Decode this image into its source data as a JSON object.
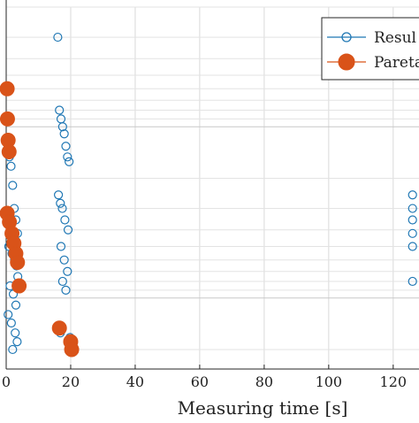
{
  "chart_data": {
    "type": "scatter",
    "title": "",
    "xlabel": "Measuring time [s]",
    "ylabel": "",
    "xlim": [
      0,
      128
    ],
    "xticks": [
      0,
      20,
      40,
      60,
      80,
      100,
      120
    ],
    "xtick_labels": [
      "0",
      "20",
      "40",
      "60",
      "80",
      "100",
      "120"
    ],
    "y_scale": "log",
    "grid": true,
    "legend_position": "top-right",
    "series": [
      {
        "name": "Resul",
        "style": "open-circle",
        "color": "#1f77b4",
        "points": [
          {
            "x": 0.5,
            "y": 0.12
          },
          {
            "x": 1.0,
            "y": 0.15
          },
          {
            "x": 1.5,
            "y": 0.17
          },
          {
            "x": 2.0,
            "y": 0.22
          },
          {
            "x": 2.5,
            "y": 0.3
          },
          {
            "x": 3.0,
            "y": 0.35
          },
          {
            "x": 3.5,
            "y": 0.42
          },
          {
            "x": 0.8,
            "y": 0.5
          },
          {
            "x": 1.8,
            "y": 0.55
          },
          {
            "x": 2.6,
            "y": 0.6
          },
          {
            "x": 3.2,
            "y": 0.65
          },
          {
            "x": 3.6,
            "y": 0.75
          },
          {
            "x": 1.2,
            "y": 0.85
          },
          {
            "x": 2.2,
            "y": 0.95
          },
          {
            "x": 3.0,
            "y": 1.1
          },
          {
            "x": 0.6,
            "y": 1.25
          },
          {
            "x": 1.6,
            "y": 1.4
          },
          {
            "x": 2.8,
            "y": 1.6
          },
          {
            "x": 3.4,
            "y": 1.8
          },
          {
            "x": 2.0,
            "y": 2.0
          },
          {
            "x": 16.0,
            "y": 0.03
          },
          {
            "x": 16.5,
            "y": 0.08
          },
          {
            "x": 17.0,
            "y": 0.09
          },
          {
            "x": 17.5,
            "y": 0.1
          },
          {
            "x": 18.0,
            "y": 0.11
          },
          {
            "x": 18.5,
            "y": 0.13
          },
          {
            "x": 19.0,
            "y": 0.15
          },
          {
            "x": 19.5,
            "y": 0.16
          },
          {
            "x": 16.2,
            "y": 0.25
          },
          {
            "x": 16.8,
            "y": 0.28
          },
          {
            "x": 17.4,
            "y": 0.3
          },
          {
            "x": 18.2,
            "y": 0.35
          },
          {
            "x": 19.2,
            "y": 0.4
          },
          {
            "x": 17.0,
            "y": 0.5
          },
          {
            "x": 18.0,
            "y": 0.6
          },
          {
            "x": 19.0,
            "y": 0.7
          },
          {
            "x": 17.5,
            "y": 0.8
          },
          {
            "x": 18.5,
            "y": 0.9
          },
          {
            "x": 16.8,
            "y": 1.6
          },
          {
            "x": 19.8,
            "y": 1.7
          },
          {
            "x": 126.0,
            "y": 0.25
          },
          {
            "x": 126.0,
            "y": 0.3
          },
          {
            "x": 126.0,
            "y": 0.35
          },
          {
            "x": 126.0,
            "y": 0.42
          },
          {
            "x": 126.0,
            "y": 0.5
          },
          {
            "x": 126.0,
            "y": 0.8
          }
        ]
      },
      {
        "name": "Pareta",
        "style": "filled-circle",
        "color": "#d95319",
        "points": [
          {
            "x": 0.3,
            "y": 0.06
          },
          {
            "x": 0.4,
            "y": 0.09
          },
          {
            "x": 0.6,
            "y": 0.12
          },
          {
            "x": 0.9,
            "y": 0.14
          },
          {
            "x": 0.3,
            "y": 0.32
          },
          {
            "x": 1.0,
            "y": 0.36
          },
          {
            "x": 1.8,
            "y": 0.42
          },
          {
            "x": 2.4,
            "y": 0.48
          },
          {
            "x": 3.0,
            "y": 0.55
          },
          {
            "x": 3.5,
            "y": 0.62
          },
          {
            "x": 4.0,
            "y": 0.85
          },
          {
            "x": 16.5,
            "y": 1.5
          },
          {
            "x": 20.0,
            "y": 1.8
          },
          {
            "x": 20.3,
            "y": 2.0
          }
        ]
      }
    ]
  }
}
